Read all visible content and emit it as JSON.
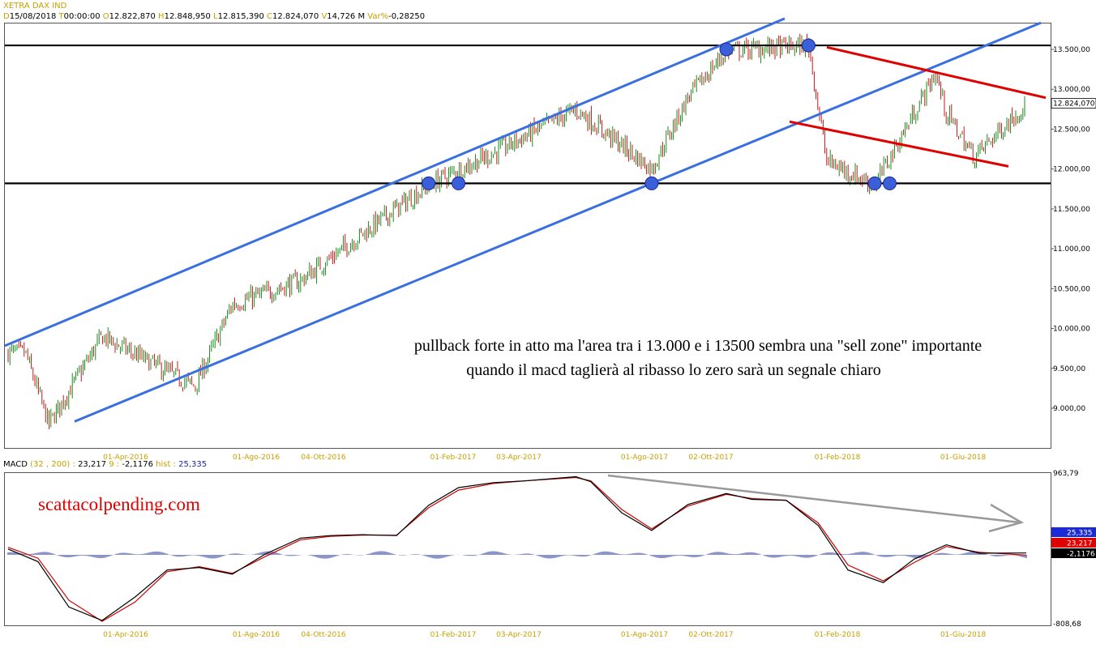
{
  "header": {
    "title": "XETRA DAX IND",
    "ohlc": [
      {
        "k": "D",
        "v": "15/08/2018"
      },
      {
        "k": "T",
        "v": "00:00:00"
      },
      {
        "k": "O",
        "v": "12.822,870"
      },
      {
        "k": "H",
        "v": "12.848,950"
      },
      {
        "k": "L",
        "v": "12.815,390"
      },
      {
        "k": "C",
        "v": "12.824,070"
      },
      {
        "k": "V",
        "v": "14,726 M"
      },
      {
        "k": "Var%",
        "v": "-0,28250"
      }
    ]
  },
  "macd_header": {
    "name": "MACD",
    "params": "(32 , 200) :",
    "macd_value": "23,217",
    "signal_period": "9 :",
    "signal_value": "-2,1176",
    "hist_label": "hist :",
    "hist_value": "25,335"
  },
  "price_axis": {
    "ticks": [
      "13.500,00",
      "13.000,00",
      "12.500,00",
      "12.000,00",
      "11.500,00",
      "11.000,00",
      "10.500,00",
      "10.000,00",
      "9.500,00",
      "9.000,00"
    ],
    "current_label": "12.824,070"
  },
  "macd_axis": {
    "top_label": "963,79",
    "bottom_label": "-808,68",
    "hist_badge": "25,335",
    "macd_badge": "23,217",
    "signal_badge": "-2,1176"
  },
  "dates": [
    "01-Apr-2016",
    "01-Ago-2016",
    "04-Ott-2016",
    "01-Feb-2017",
    "03-Apr-2017",
    "01-Ago-2017",
    "02-Ott-2017",
    "01-Feb-2018",
    "01-Giu-2018"
  ],
  "annotations": {
    "line1": "pullback forte in atto ma l'area tra i 13.000 e i 13500 sembra una \"sell zone\" importante",
    "line2": "quando il macd taglierà al ribasso lo zero sarà un segnale chiaro",
    "watermark": "scattacolpending.com"
  },
  "colors": {
    "channel": "#3a6fe0",
    "resistance_channel": "#e00000",
    "horizontal_levels": "#000000",
    "candle_up": "#008000",
    "candle_down": "#c00000",
    "macd_line": "#000000",
    "signal_line": "#d00000",
    "histogram": "#1a2a9a",
    "trend_arrow": "#999999",
    "axis_dates": "#c8a000"
  },
  "chart_data": [
    {
      "type": "candlestick",
      "title": "XETRA DAX IND",
      "ylim": [
        8500,
        13800
      ],
      "y_ticks": [
        9000,
        9500,
        10000,
        10500,
        11000,
        11500,
        12000,
        12500,
        13000,
        13500
      ],
      "x": [
        "2016-01-20",
        "2016-02-11",
        "2016-04-01",
        "2016-06-27",
        "2016-08-01",
        "2016-10-04",
        "2016-12-30",
        "2017-02-01",
        "2017-04-03",
        "2017-06-19",
        "2017-08-29",
        "2017-10-02",
        "2017-11-07",
        "2018-01-23",
        "2018-02-09",
        "2018-03-26",
        "2018-05-22",
        "2018-06-01",
        "2018-06-27",
        "2018-08-15"
      ],
      "close": [
        9700,
        8800,
        9900,
        9270,
        10300,
        10600,
        11480,
        11800,
        12200,
        12750,
        12000,
        12900,
        13480,
        13550,
        12100,
        11800,
        13200,
        12700,
        12150,
        12824
      ],
      "last": {
        "date": "15/08/2018",
        "open": 12822.87,
        "high": 12848.95,
        "low": 12815.39,
        "close": 12824.07,
        "volume": "14,726 M",
        "change_pct": -0.2825
      },
      "horizontal_levels": [
        13550,
        11820
      ],
      "rising_channel": {
        "upper": [
          [
            "2016-01-04",
            9800
          ],
          [
            "2017-11-07",
            13580
          ]
        ],
        "lower": [
          [
            "2016-02-11",
            8700
          ],
          [
            "2017-08-29",
            11820
          ]
        ]
      },
      "falling_channel": {
        "upper": [
          [
            "2018-01-23",
            13580
          ],
          [
            "2018-08-15",
            12950
          ]
        ],
        "lower": [
          [
            "2017-11-20",
            12720
          ],
          [
            "2018-07-05",
            12100
          ]
        ]
      },
      "touch_points": [
        {
          "date": "2017-02-01",
          "value": 11820
        },
        {
          "date": "2017-03-01",
          "value": 11820
        },
        {
          "date": "2017-08-29",
          "value": 11820
        },
        {
          "date": "2017-11-07",
          "value": 13500
        },
        {
          "date": "2018-01-23",
          "value": 13550
        },
        {
          "date": "2018-03-26",
          "value": 11820
        },
        {
          "date": "2018-04-09",
          "value": 11820
        }
      ]
    },
    {
      "type": "line",
      "title": "MACD",
      "ylim": [
        -808.68,
        963.79
      ],
      "x": [
        "2016-01-04",
        "2016-02-01",
        "2016-03-01",
        "2016-04-01",
        "2016-05-02",
        "2016-06-01",
        "2016-07-01",
        "2016-08-01",
        "2016-09-01",
        "2016-10-04",
        "2016-11-01",
        "2016-12-01",
        "2017-01-02",
        "2017-02-01",
        "2017-03-01",
        "2017-04-03",
        "2017-05-02",
        "2017-06-19",
        "2017-07-03",
        "2017-08-01",
        "2017-08-29",
        "2017-10-02",
        "2017-11-07",
        "2017-12-01",
        "2018-01-02",
        "2018-02-01",
        "2018-03-01",
        "2018-04-03",
        "2018-05-02",
        "2018-06-01",
        "2018-07-02",
        "2018-08-15"
      ],
      "series": [
        {
          "name": "MACD",
          "values": [
            70,
            -80,
            -620,
            -780,
            -500,
            -180,
            -150,
            -230,
            10,
            200,
            230,
            240,
            230,
            590,
            800,
            860,
            880,
            930,
            870,
            500,
            290,
            600,
            730,
            660,
            650,
            350,
            -180,
            -330,
            -50,
            120,
            20,
            23
          ]
        },
        {
          "name": "Signal",
          "values": [
            90,
            -40,
            -540,
            -790,
            -560,
            -200,
            -140,
            -220,
            -20,
            180,
            220,
            235,
            235,
            560,
            770,
            850,
            880,
            920,
            880,
            540,
            310,
            580,
            720,
            670,
            650,
            380,
            -120,
            -310,
            -90,
            100,
            30,
            -2
          ]
        }
      ],
      "histogram_range": [
        -60,
        60
      ]
    }
  ]
}
